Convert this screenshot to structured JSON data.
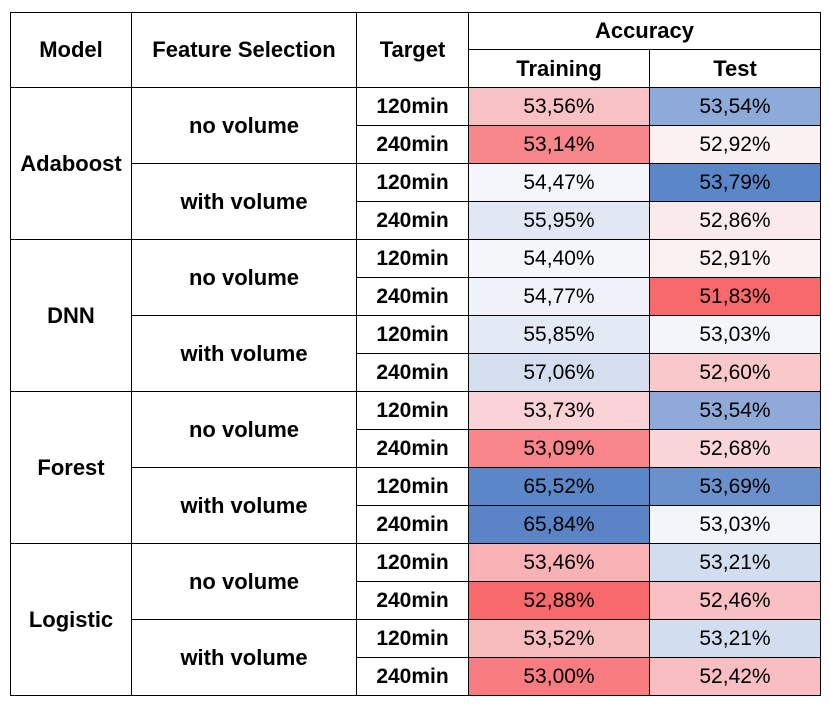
{
  "chart_data": {
    "type": "table",
    "headers": {
      "model": "Model",
      "feature_selection": "Feature Selection",
      "target": "Target",
      "accuracy": "Accuracy",
      "training": "Training",
      "test": "Test"
    },
    "groups": [
      {
        "model": "Adaboost",
        "subgroups": [
          {
            "feature_selection": "no volume",
            "rows": [
              {
                "target": "120min",
                "training": "53,56%",
                "test": "53,54%",
                "training_color": "#f8c1c4",
                "test_color": "#8eaad8"
              },
              {
                "target": "240min",
                "training": "53,14%",
                "test": "52,92%",
                "training_color": "#f8878b",
                "test_color": "#fbf1f3"
              }
            ]
          },
          {
            "feature_selection": "with volume",
            "rows": [
              {
                "target": "120min",
                "training": "54,47%",
                "test": "53,79%",
                "training_color": "#f4f6fb",
                "test_color": "#5b86c7"
              },
              {
                "target": "240min",
                "training": "55,95%",
                "test": "52,86%",
                "training_color": "#e1e8f4",
                "test_color": "#fbeaec"
              }
            ]
          }
        ]
      },
      {
        "model": "DNN",
        "subgroups": [
          {
            "feature_selection": "no volume",
            "rows": [
              {
                "target": "120min",
                "training": "54,40%",
                "test": "52,91%",
                "training_color": "#f6f7fb",
                "test_color": "#fbf0f2"
              },
              {
                "target": "240min",
                "training": "54,77%",
                "test": "51,83%",
                "training_color": "#eff2f8",
                "test_color": "#f8696b"
              }
            ]
          },
          {
            "feature_selection": "with volume",
            "rows": [
              {
                "target": "120min",
                "training": "55,85%",
                "test": "53,03%",
                "training_color": "#e4eaf5",
                "test_color": "#f3f5fa"
              },
              {
                "target": "240min",
                "training": "57,06%",
                "test": "52,60%",
                "training_color": "#d4deef",
                "test_color": "#f9c8cb"
              }
            ]
          }
        ]
      },
      {
        "model": "Forest",
        "subgroups": [
          {
            "feature_selection": "no volume",
            "rows": [
              {
                "target": "120min",
                "training": "53,73%",
                "test": "53,54%",
                "training_color": "#f9d3d6",
                "test_color": "#8faad8"
              },
              {
                "target": "240min",
                "training": "53,09%",
                "test": "52,68%",
                "training_color": "#f8868a",
                "test_color": "#fad6d9"
              }
            ]
          },
          {
            "feature_selection": "with volume",
            "rows": [
              {
                "target": "120min",
                "training": "65,52%",
                "test": "53,69%",
                "training_color": "#5b86c7",
                "test_color": "#6b91cc"
              },
              {
                "target": "240min",
                "training": "65,84%",
                "test": "53,03%",
                "training_color": "#5a84c6",
                "test_color": "#f3f5fa"
              }
            ]
          }
        ]
      },
      {
        "model": "Logistic",
        "subgroups": [
          {
            "feature_selection": "no volume",
            "rows": [
              {
                "target": "120min",
                "training": "53,46%",
                "test": "53,21%",
                "training_color": "#f8b2b5",
                "test_color": "#d2ddef"
              },
              {
                "target": "240min",
                "training": "52,88%",
                "test": "52,46%",
                "training_color": "#f8696b",
                "test_color": "#f9c0c3"
              }
            ]
          },
          {
            "feature_selection": "with volume",
            "rows": [
              {
                "target": "120min",
                "training": "53,52%",
                "test": "53,21%",
                "training_color": "#f8bcbf",
                "test_color": "#d2ddef"
              },
              {
                "target": "240min",
                "training": "53,00%",
                "test": "52,42%",
                "training_color": "#f87c80",
                "test_color": "#f9bec1"
              }
            ]
          }
        ]
      }
    ]
  }
}
